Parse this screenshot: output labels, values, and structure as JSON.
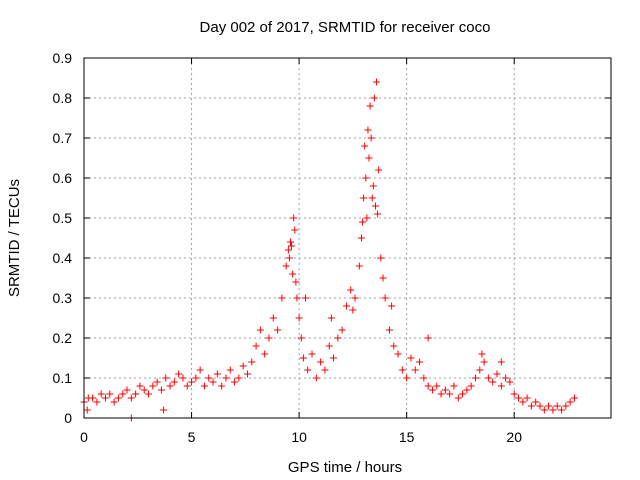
{
  "chart_data": {
    "type": "scatter",
    "title": "Day 002 of 2017, SRMTID for receiver coco",
    "xlabel": "GPS time / hours",
    "ylabel": "SRMTID / TECUs",
    "xlim": [
      0,
      24.5
    ],
    "ylim": [
      0,
      0.9
    ],
    "xticks": [
      0,
      5,
      10,
      15,
      20
    ],
    "yticks": [
      0,
      0.1,
      0.2,
      0.3,
      0.4,
      0.5,
      0.6,
      0.7,
      0.8,
      0.9
    ],
    "xtick_labels": [
      "0",
      "5",
      "10",
      "15",
      "20"
    ],
    "ytick_labels": [
      "0",
      "0.1",
      "0.2",
      "0.3",
      "0.4",
      "0.5",
      "0.6",
      "0.7",
      "0.8",
      "0.9"
    ],
    "grid": true,
    "marker": "plus",
    "color": "#ff0000",
    "series": [
      {
        "name": "SRMTID",
        "x": [
          0.0,
          0.2,
          0.4,
          0.6,
          0.8,
          1.0,
          1.2,
          1.4,
          1.6,
          1.8,
          2.0,
          2.2,
          2.4,
          2.6,
          2.8,
          3.0,
          3.2,
          3.4,
          3.6,
          3.8,
          4.0,
          4.2,
          4.4,
          4.6,
          4.8,
          5.0,
          5.2,
          5.4,
          5.6,
          5.8,
          6.0,
          6.2,
          6.4,
          6.6,
          6.8,
          7.0,
          7.2,
          7.4,
          7.6,
          7.8,
          8.0,
          8.2,
          8.4,
          8.6,
          8.8,
          9.0,
          9.2,
          9.4,
          9.5,
          9.6,
          9.7,
          9.8,
          9.9,
          10.0,
          10.1,
          10.2,
          10.4,
          10.6,
          10.8,
          11.0,
          11.2,
          11.4,
          11.6,
          11.8,
          12.0,
          12.2,
          12.4,
          12.6,
          12.8,
          12.9,
          13.0,
          13.1,
          13.2,
          13.3,
          13.4,
          13.5,
          13.6,
          13.7,
          13.8,
          13.9,
          14.0,
          14.2,
          14.4,
          14.6,
          14.8,
          15.0,
          15.2,
          15.4,
          15.6,
          15.8,
          16.0,
          16.2,
          16.4,
          16.6,
          16.8,
          17.0,
          17.2,
          17.4,
          17.6,
          17.8,
          18.0,
          18.2,
          18.4,
          18.6,
          18.8,
          19.0,
          19.2,
          19.4,
          19.6,
          19.8,
          20.0,
          20.2,
          20.4,
          20.6,
          20.8,
          21.0,
          21.2,
          21.4,
          21.6,
          21.8,
          22.0,
          22.2,
          22.4,
          22.6,
          22.8,
          2.2,
          0.15,
          3.7,
          9.55,
          9.65,
          9.75,
          9.85,
          13.25,
          13.35,
          13.45,
          13.55,
          13.05,
          13.15,
          12.95,
          13.65,
          14.3,
          10.3,
          11.5,
          12.5,
          16.0,
          18.5,
          19.4
        ],
        "y": [
          0.04,
          0.05,
          0.05,
          0.04,
          0.06,
          0.05,
          0.06,
          0.04,
          0.05,
          0.06,
          0.07,
          0.05,
          0.06,
          0.08,
          0.07,
          0.06,
          0.08,
          0.09,
          0.07,
          0.1,
          0.08,
          0.09,
          0.11,
          0.1,
          0.08,
          0.09,
          0.1,
          0.12,
          0.08,
          0.1,
          0.09,
          0.11,
          0.08,
          0.1,
          0.12,
          0.09,
          0.1,
          0.13,
          0.11,
          0.14,
          0.18,
          0.22,
          0.16,
          0.2,
          0.25,
          0.22,
          0.3,
          0.38,
          0.42,
          0.44,
          0.36,
          0.47,
          0.3,
          0.25,
          0.2,
          0.15,
          0.12,
          0.16,
          0.1,
          0.14,
          0.12,
          0.18,
          0.15,
          0.2,
          0.22,
          0.28,
          0.32,
          0.3,
          0.38,
          0.45,
          0.55,
          0.6,
          0.72,
          0.78,
          0.55,
          0.8,
          0.84,
          0.62,
          0.4,
          0.35,
          0.3,
          0.22,
          0.18,
          0.16,
          0.12,
          0.1,
          0.15,
          0.12,
          0.14,
          0.1,
          0.08,
          0.07,
          0.08,
          0.06,
          0.07,
          0.06,
          0.08,
          0.05,
          0.06,
          0.07,
          0.08,
          0.1,
          0.12,
          0.14,
          0.1,
          0.09,
          0.11,
          0.08,
          0.1,
          0.09,
          0.06,
          0.05,
          0.04,
          0.05,
          0.03,
          0.04,
          0.03,
          0.02,
          0.03,
          0.02,
          0.03,
          0.02,
          0.03,
          0.04,
          0.05,
          0.0,
          0.02,
          0.02,
          0.4,
          0.43,
          0.5,
          0.34,
          0.65,
          0.7,
          0.58,
          0.53,
          0.68,
          0.5,
          0.49,
          0.51,
          0.28,
          0.3,
          0.25,
          0.27,
          0.2,
          0.16,
          0.14
        ]
      }
    ]
  }
}
